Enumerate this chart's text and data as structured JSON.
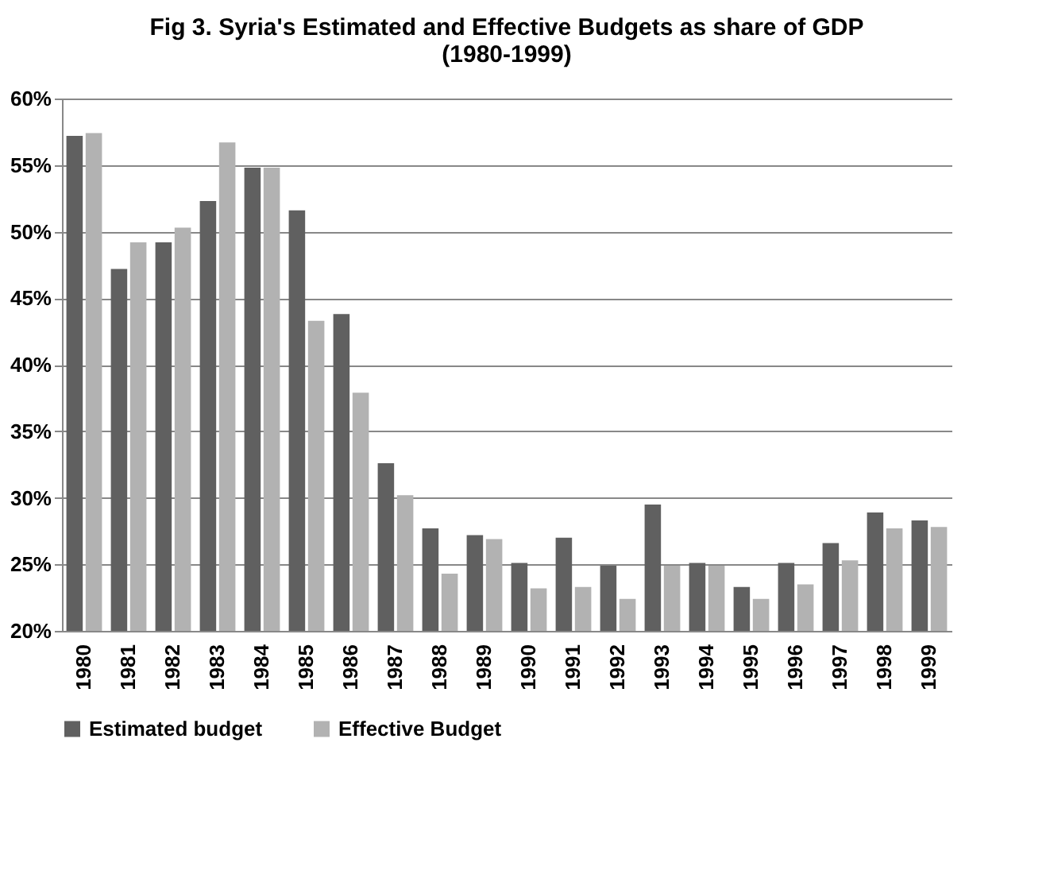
{
  "chart_data": {
    "type": "bar",
    "title": "Fig 3. Syria's Estimated and Effective Budgets as share of GDP (1980-1999)",
    "categories": [
      "1980",
      "1981",
      "1982",
      "1983",
      "1984",
      "1985",
      "1986",
      "1987",
      "1988",
      "1989",
      "1990",
      "1991",
      "1992",
      "1993",
      "1994",
      "1995",
      "1996",
      "1997",
      "1998",
      "1999"
    ],
    "series": [
      {
        "name": "Estimated budget",
        "color": "#606060",
        "values": [
          57.2,
          47.2,
          49.2,
          52.3,
          54.8,
          51.6,
          43.8,
          32.6,
          27.7,
          27.2,
          25.1,
          27.0,
          24.9,
          29.5,
          25.1,
          23.3,
          25.1,
          26.6,
          28.9,
          28.3
        ]
      },
      {
        "name": "Effective Budget",
        "color": "#b2b2b2",
        "values": [
          57.4,
          49.2,
          50.3,
          56.7,
          54.8,
          43.3,
          37.9,
          30.2,
          24.3,
          26.9,
          23.2,
          23.3,
          22.4,
          24.9,
          24.9,
          22.4,
          23.5,
          25.3,
          27.7,
          27.8
        ]
      }
    ],
    "ylim": [
      20,
      60
    ],
    "yticks": [
      {
        "value": 20,
        "label": "20%"
      },
      {
        "value": 25,
        "label": "25%"
      },
      {
        "value": 30,
        "label": "30%"
      },
      {
        "value": 35,
        "label": "35%"
      },
      {
        "value": 40,
        "label": "40%"
      },
      {
        "value": 45,
        "label": "45%"
      },
      {
        "value": 50,
        "label": "50%"
      },
      {
        "value": 55,
        "label": "55%"
      },
      {
        "value": 60,
        "label": "60%"
      }
    ],
    "grid": "y",
    "legend": "bottom"
  }
}
